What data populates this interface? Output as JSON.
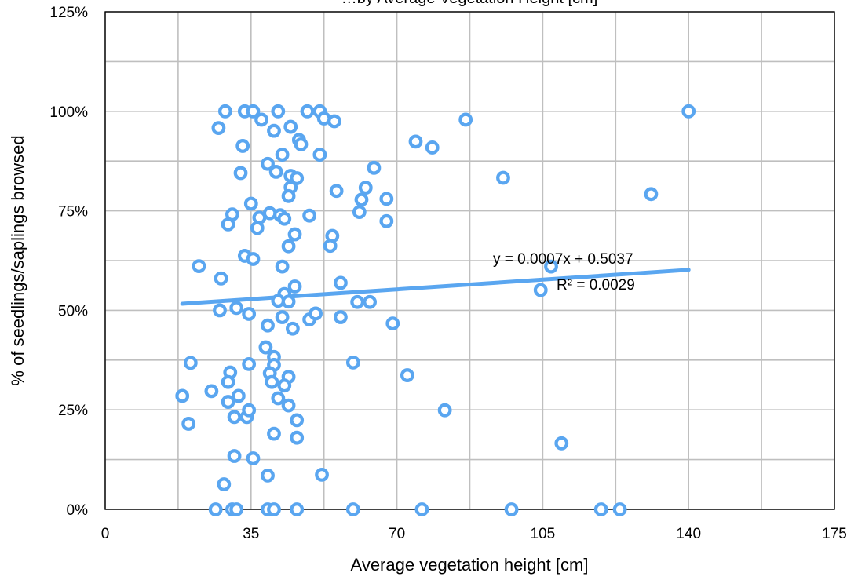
{
  "chart_data": {
    "type": "scatter",
    "title": "…by Average Vegetation Height [cm]",
    "xlabel": "Average vegetation height [cm]",
    "ylabel": "% of seedlings/saplings browsed",
    "xlim": [
      0,
      175
    ],
    "ylim": [
      0,
      1.25
    ],
    "x_ticks": [
      0,
      35,
      70,
      105,
      140,
      175
    ],
    "x_tick_labels": [
      "0",
      "35",
      "70",
      "105",
      "140",
      "175"
    ],
    "y_ticks": [
      0,
      0.25,
      0.5,
      0.75,
      1.0,
      1.25
    ],
    "y_tick_labels": [
      "0%",
      "25%",
      "50%",
      "75%",
      "100%",
      "125%"
    ],
    "grid": true,
    "marker_color": "#5aa6f0",
    "trendline_color": "#5aa6f0",
    "points": [
      [
        28.8,
        1.0
      ],
      [
        33.5,
        1.0
      ],
      [
        35.5,
        1.0
      ],
      [
        41.5,
        1.0
      ],
      [
        48.5,
        1.0
      ],
      [
        51.5,
        1.0
      ],
      [
        140,
        1.0
      ],
      [
        27.2,
        0.958
      ],
      [
        37.5,
        0.979
      ],
      [
        40.5,
        0.951
      ],
      [
        44.5,
        0.961
      ],
      [
        52.5,
        0.982
      ],
      [
        55,
        0.975
      ],
      [
        86.5,
        0.979
      ],
      [
        33,
        0.913
      ],
      [
        46.5,
        0.928
      ],
      [
        47,
        0.917
      ],
      [
        51.5,
        0.891
      ],
      [
        74.5,
        0.924
      ],
      [
        78.5,
        0.909
      ],
      [
        42.5,
        0.891
      ],
      [
        39,
        0.868
      ],
      [
        41,
        0.848
      ],
      [
        32.5,
        0.845
      ],
      [
        44.5,
        0.838
      ],
      [
        46,
        0.832
      ],
      [
        64.5,
        0.858
      ],
      [
        95.5,
        0.833
      ],
      [
        44.5,
        0.809
      ],
      [
        55.5,
        0.8
      ],
      [
        62.5,
        0.808
      ],
      [
        44,
        0.787
      ],
      [
        61.5,
        0.778
      ],
      [
        67.5,
        0.78
      ],
      [
        131,
        0.792
      ],
      [
        35,
        0.768
      ],
      [
        30.5,
        0.741
      ],
      [
        39.5,
        0.744
      ],
      [
        42,
        0.739
      ],
      [
        43,
        0.73
      ],
      [
        49,
        0.738
      ],
      [
        61,
        0.747
      ],
      [
        37,
        0.733
      ],
      [
        29.5,
        0.716
      ],
      [
        36.5,
        0.707
      ],
      [
        45.5,
        0.691
      ],
      [
        54.5,
        0.687
      ],
      [
        67.5,
        0.724
      ],
      [
        44,
        0.661
      ],
      [
        54,
        0.662
      ],
      [
        33.5,
        0.637
      ],
      [
        35.5,
        0.629
      ],
      [
        22.5,
        0.611
      ],
      [
        42.5,
        0.61
      ],
      [
        107,
        0.61
      ],
      [
        27.8,
        0.58
      ],
      [
        45.5,
        0.56
      ],
      [
        56.5,
        0.569
      ],
      [
        43,
        0.541
      ],
      [
        41.5,
        0.524
      ],
      [
        44,
        0.522
      ],
      [
        60.5,
        0.521
      ],
      [
        63.5,
        0.521
      ],
      [
        104.5,
        0.551
      ],
      [
        27.5,
        0.5
      ],
      [
        31.5,
        0.506
      ],
      [
        34.5,
        0.491
      ],
      [
        42.5,
        0.483
      ],
      [
        49,
        0.477
      ],
      [
        50.5,
        0.492
      ],
      [
        56.5,
        0.483
      ],
      [
        69,
        0.467
      ],
      [
        39,
        0.462
      ],
      [
        45,
        0.454
      ],
      [
        38.5,
        0.407
      ],
      [
        40.5,
        0.383
      ],
      [
        40.5,
        0.363
      ],
      [
        34.5,
        0.365
      ],
      [
        20.5,
        0.368
      ],
      [
        59.5,
        0.369
      ],
      [
        72.5,
        0.337
      ],
      [
        30,
        0.344
      ],
      [
        29.5,
        0.32
      ],
      [
        39.5,
        0.342
      ],
      [
        44,
        0.333
      ],
      [
        43,
        0.311
      ],
      [
        40,
        0.32
      ],
      [
        18.5,
        0.285
      ],
      [
        25.5,
        0.297
      ],
      [
        32,
        0.285
      ],
      [
        29.5,
        0.27
      ],
      [
        41.5,
        0.279
      ],
      [
        44,
        0.261
      ],
      [
        31,
        0.232
      ],
      [
        34,
        0.232
      ],
      [
        34.5,
        0.249
      ],
      [
        46,
        0.224
      ],
      [
        81.5,
        0.249
      ],
      [
        20,
        0.215
      ],
      [
        40.5,
        0.19
      ],
      [
        46,
        0.18
      ],
      [
        109.5,
        0.166
      ],
      [
        31,
        0.134
      ],
      [
        35.5,
        0.128
      ],
      [
        39,
        0.085
      ],
      [
        52,
        0.087
      ],
      [
        28.5,
        0.063
      ],
      [
        26.5,
        0.0
      ],
      [
        30.5,
        0.0
      ],
      [
        31.5,
        0.0
      ],
      [
        39,
        0.0
      ],
      [
        40.5,
        0.0
      ],
      [
        46,
        0.0
      ],
      [
        59.5,
        0.0
      ],
      [
        76,
        0.0
      ],
      [
        97.5,
        0.0
      ],
      [
        119,
        0.0
      ],
      [
        123.5,
        0.0
      ]
    ],
    "trendline": {
      "slope": 0.0007,
      "intercept": 0.5037,
      "x_range": [
        18.5,
        140
      ],
      "equation": "y = 0.0007x + 0.5037",
      "r_squared": "R² = 0.0029"
    }
  }
}
